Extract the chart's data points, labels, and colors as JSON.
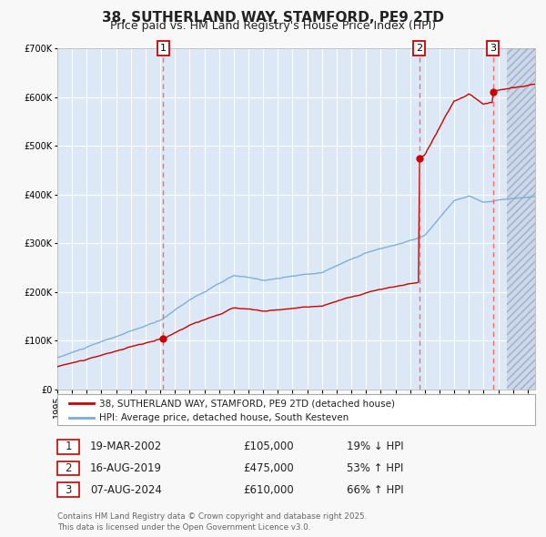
{
  "title": "38, SUTHERLAND WAY, STAMFORD, PE9 2TD",
  "subtitle": "Price paid vs. HM Land Registry's House Price Index (HPI)",
  "ylim": [
    0,
    700000
  ],
  "yticks": [
    0,
    100000,
    200000,
    300000,
    400000,
    500000,
    600000,
    700000
  ],
  "background_color": "#f8f8f8",
  "plot_bg_color": "#dce8f5",
  "hatch_color": "#b0bfd0",
  "grid_color": "#ffffff",
  "sale_prices": [
    105000,
    475000,
    610000
  ],
  "sale_years_float": [
    2002.208,
    2019.625,
    2024.625
  ],
  "sale_labels": [
    "1",
    "2",
    "3"
  ],
  "legend_red": "38, SUTHERLAND WAY, STAMFORD, PE9 2TD (detached house)",
  "legend_blue": "HPI: Average price, detached house, South Kesteven",
  "footer": "Contains HM Land Registry data © Crown copyright and database right 2025.\nThis data is licensed under the Open Government Licence v3.0.",
  "red_color": "#cc0000",
  "blue_color": "#7aadd4",
  "vline_color": "#ff5555",
  "marker_color": "#cc0000",
  "table_rows": [
    {
      "num": "1",
      "date": "19-MAR-2002",
      "price": "£105,000",
      "hpi": "19% ↓ HPI"
    },
    {
      "num": "2",
      "date": "16-AUG-2019",
      "price": "£475,000",
      "hpi": "53% ↑ HPI"
    },
    {
      "num": "3",
      "date": "07-AUG-2024",
      "price": "£610,000",
      "hpi": "66% ↑ HPI"
    }
  ]
}
